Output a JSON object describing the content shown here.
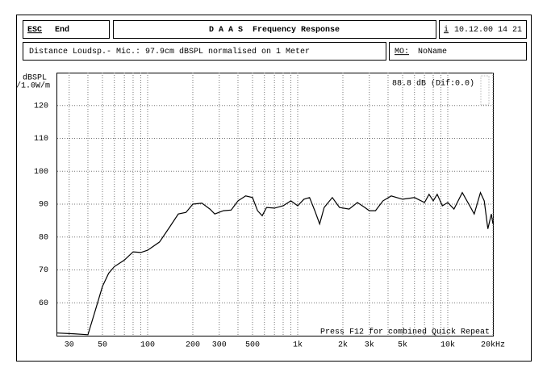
{
  "header": {
    "esc_key": "ESC",
    "esc_action": "End",
    "title": "D A A S  Frequency Response",
    "info_key": "i",
    "datetime": "10.12.00 14 21",
    "description": "Distance Loudsp.- Mic.: 97.9cm dBSPL normalised on 1 Meter",
    "memory_key": "MO:",
    "memory_name": "NoName"
  },
  "chart_data": {
    "type": "line",
    "y_label": [
      "dBSPL",
      "/1.0W/m"
    ],
    "annotation": "88.8 dB (Dif:0.0)",
    "footer_note": "Press F12 for combined Quick Repeat",
    "log_x": true,
    "grid": true,
    "color": "#000000",
    "xlim": [
      25,
      20000
    ],
    "ylim": [
      50,
      130
    ],
    "xticks": [
      30,
      50,
      100,
      200,
      300,
      500,
      {
        "value": 1000,
        "label": "1k"
      },
      {
        "value": 2000,
        "label": "2k"
      },
      {
        "value": 3000,
        "label": "3k"
      },
      {
        "value": 5000,
        "label": "5k"
      },
      {
        "value": 10000,
        "label": "10k"
      },
      {
        "value": 20000,
        "label": "20kHz"
      }
    ],
    "xminor": [
      40,
      60,
      70,
      80,
      90,
      400,
      600,
      700,
      800,
      900,
      4000,
      6000,
      7000,
      8000,
      9000
    ],
    "yticks": [
      60,
      70,
      80,
      90,
      100,
      110,
      120
    ],
    "x": [
      25,
      32,
      40,
      45,
      50,
      55,
      60,
      70,
      80,
      90,
      100,
      120,
      140,
      160,
      180,
      200,
      230,
      260,
      280,
      320,
      360,
      400,
      450,
      500,
      540,
      580,
      620,
      700,
      800,
      900,
      1000,
      1100,
      1200,
      1300,
      1400,
      1500,
      1700,
      1900,
      2200,
      2500,
      2800,
      3000,
      3300,
      3700,
      4200,
      5000,
      6000,
      7000,
      7500,
      8000,
      8500,
      9200,
      10000,
      11000,
      12500,
      14000,
      15000,
      16500,
      17500,
      18500,
      19500,
      20000
    ],
    "values": [
      50.8,
      50.6,
      50.3,
      58,
      65,
      69,
      71,
      73,
      75.5,
      75.3,
      76,
      78.5,
      83,
      87,
      87.5,
      90,
      90.3,
      88.5,
      87,
      88,
      88.2,
      91,
      92.5,
      92,
      88,
      86.5,
      89,
      88.8,
      89.5,
      91,
      89.5,
      91.5,
      92,
      88,
      84,
      89,
      92,
      89,
      88.5,
      90.5,
      89,
      88,
      88,
      91,
      92.5,
      91.5,
      92,
      90.5,
      93,
      91,
      93,
      89.5,
      90.5,
      88.5,
      93.5,
      89.5,
      87,
      93.5,
      91,
      82.5,
      87,
      84
    ]
  }
}
